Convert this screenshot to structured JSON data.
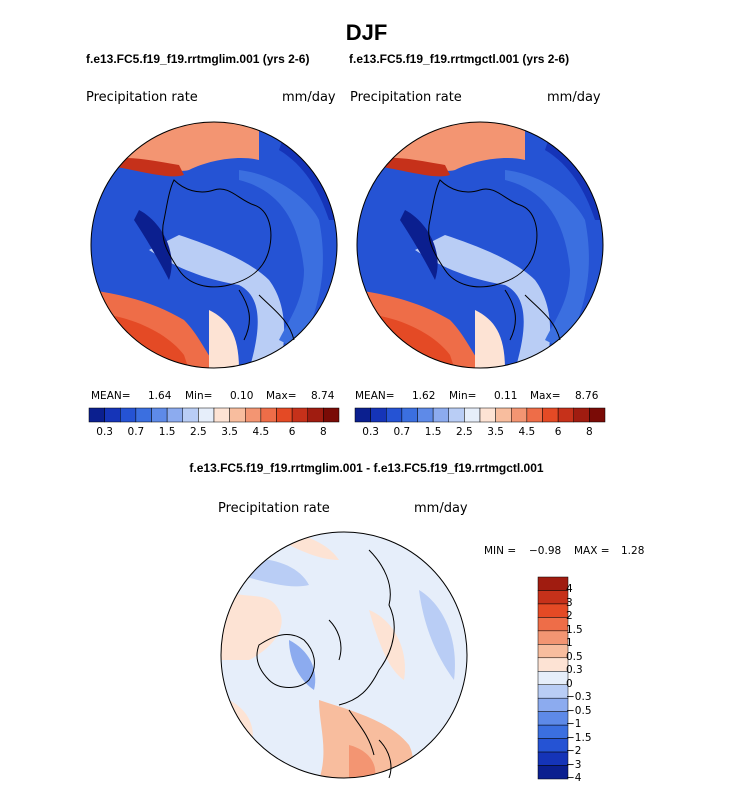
{
  "season": "DJF",
  "colors": {
    "precip_scale": [
      "#0b1f8f",
      "#1534b8",
      "#2553d4",
      "#3b6fe0",
      "#5e8ae8",
      "#8cabef",
      "#b9cdf5",
      "#e6eefa",
      "#fde3d4",
      "#f8bd9e",
      "#f39572",
      "#ee6d48",
      "#e44a25",
      "#c6311a",
      "#a01c10",
      "#7a0b06"
    ],
    "diff_scale": [
      "#0b1f8f",
      "#1534b8",
      "#2553d4",
      "#3b6fe0",
      "#5e8ae8",
      "#8cabef",
      "#b9cdf5",
      "#e6eefa",
      "#fde3d4",
      "#f8bd9e",
      "#f39572",
      "#ee6d48",
      "#e44a25",
      "#c6311a",
      "#a01c10"
    ]
  },
  "panels": [
    {
      "title": "f.e13.FC5.f19_f19.rrtmglim.001 (yrs 2-6)",
      "variable": "Precipitation rate",
      "units": "mm/day",
      "mean_label": "MEAN=",
      "mean": "1.64",
      "min_label": "Min=",
      "min": "0.10",
      "max_label": "Max=",
      "max": "8.74",
      "colorbar_ticks": [
        "0.3",
        "0.7",
        "1.5",
        "2.5",
        "3.5",
        "4.5",
        "6",
        "8"
      ]
    },
    {
      "title": "f.e13.FC5.f19_f19.rrtmgctl.001 (yrs 2-6)",
      "variable": "Precipitation rate",
      "units": "mm/day",
      "mean_label": "MEAN=",
      "mean": "1.62",
      "min_label": "Min=",
      "min": "0.11",
      "max_label": "Max=",
      "max": "8.76",
      "colorbar_ticks": [
        "0.3",
        "0.7",
        "1.5",
        "2.5",
        "3.5",
        "4.5",
        "6",
        "8"
      ]
    }
  ],
  "difference": {
    "title": "f.e13.FC5.f19_f19.rrtmglim.001 - f.e13.FC5.f19_f19.rrtmgctl.001",
    "variable": "Precipitation rate",
    "units": "mm/day",
    "min_label": "MIN =",
    "min": "−0.98",
    "max_label": "MAX =",
    "max": "1.28",
    "colorbar_ticks": [
      "4",
      "3",
      "2",
      "1.5",
      "1",
      "0.5",
      "0.3",
      "0",
      "−0.3",
      "−0.5",
      "−1",
      "−1.5",
      "−2",
      "−3",
      "−4"
    ]
  },
  "chart_data": [
    {
      "type": "heatmap",
      "projection": "polar-stereographic, north pole",
      "title": "f.e13.FC5.f19_f19.rrtmglim.001 (yrs 2-6)",
      "variable": "Precipitation rate",
      "units": "mm/day",
      "mean": 1.64,
      "min": 0.1,
      "max": 8.74,
      "levels": [
        0.3,
        0.7,
        1.5,
        2.5,
        3.5,
        4.5,
        6,
        8
      ]
    },
    {
      "type": "heatmap",
      "projection": "polar-stereographic, north pole",
      "title": "f.e13.FC5.f19_f19.rrtmgctl.001 (yrs 2-6)",
      "variable": "Precipitation rate",
      "units": "mm/day",
      "mean": 1.62,
      "min": 0.11,
      "max": 8.76,
      "levels": [
        0.3,
        0.7,
        1.5,
        2.5,
        3.5,
        4.5,
        6,
        8
      ]
    },
    {
      "type": "heatmap",
      "projection": "polar-stereographic, north pole",
      "title": "f.e13.FC5.f19_f19.rrtmglim.001 - f.e13.FC5.f19_f19.rrtmgctl.001",
      "variable": "Precipitation rate",
      "units": "mm/day",
      "min": -0.98,
      "max": 1.28,
      "levels": [
        -4,
        -3,
        -2,
        -1.5,
        -1,
        -0.5,
        -0.3,
        0,
        0.3,
        0.5,
        1,
        1.5,
        2,
        3,
        4
      ]
    }
  ]
}
